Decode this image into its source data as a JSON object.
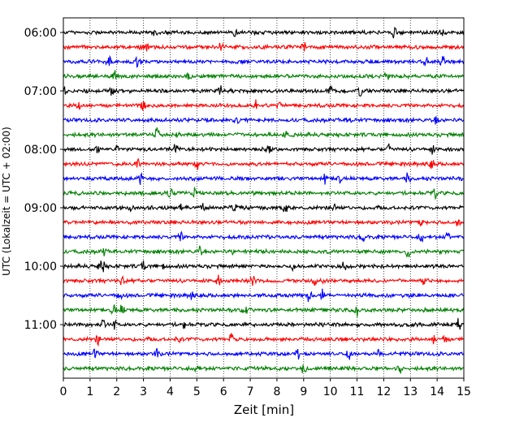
{
  "chart_data": {
    "type": "line",
    "title": "",
    "xlabel": "Zeit  [min]",
    "ylabel": "UTC (Lokalzeit = UTC + 02:00)",
    "xlim": [
      0,
      15
    ],
    "xticks": [
      0,
      1,
      2,
      3,
      4,
      5,
      6,
      7,
      8,
      9,
      10,
      11,
      12,
      13,
      14,
      15
    ],
    "grid_x": "dotted",
    "yticks": [
      {
        "label": "06:00",
        "row": 0
      },
      {
        "label": "07:00",
        "row": 4
      },
      {
        "label": "08:00",
        "row": 8
      },
      {
        "label": "09:00",
        "row": 12
      },
      {
        "label": "10:00",
        "row": 16
      },
      {
        "label": "11:00",
        "row": 20
      }
    ],
    "trace_colors": [
      "#000000",
      "#ff0000",
      "#0000ff",
      "#008000"
    ],
    "trace_count": 24,
    "trace_interval_minutes": 15,
    "events": [
      {
        "row": 0,
        "minutes": [
          3.4,
          6.4,
          12.4,
          14.2
        ]
      },
      {
        "row": 1,
        "minutes": [
          2.9,
          3.1,
          5.9,
          9.0
        ]
      },
      {
        "row": 2,
        "minutes": [
          1.7,
          2.8,
          13.6,
          14.2
        ]
      },
      {
        "row": 3,
        "minutes": [
          1.9,
          4.7,
          12.1
        ]
      },
      {
        "row": 4,
        "minutes": [
          0.1,
          1.8,
          5.9,
          10.0,
          11.1
        ]
      },
      {
        "row": 5,
        "minutes": [
          0.6,
          3.0,
          7.2,
          8.1
        ]
      },
      {
        "row": 6,
        "minutes": [
          6.5,
          10.7,
          14.0
        ]
      },
      {
        "row": 7,
        "minutes": [
          3.5,
          4.3,
          8.3
        ]
      },
      {
        "row": 8,
        "minutes": [
          1.3,
          2.0,
          4.2,
          7.7,
          12.2,
          13.8
        ]
      },
      {
        "row": 9,
        "minutes": [
          2.8,
          5.0,
          13.8
        ]
      },
      {
        "row": 10,
        "minutes": [
          2.9,
          9.8,
          10.3,
          12.9
        ]
      },
      {
        "row": 11,
        "minutes": [
          4.0,
          4.9,
          13.9
        ]
      },
      {
        "row": 12,
        "minutes": [
          2.5,
          4.4,
          5.2,
          6.4,
          8.3,
          10.1
        ]
      },
      {
        "row": 13,
        "minutes": [
          13.4,
          14.8
        ]
      },
      {
        "row": 14,
        "minutes": [
          4.4,
          11.2,
          13.4,
          14.4
        ]
      },
      {
        "row": 15,
        "minutes": [
          1.5,
          5.1,
          6.4,
          12.9
        ]
      },
      {
        "row": 16,
        "minutes": [
          1.4,
          1.5,
          3.0,
          3.7,
          8.6,
          10.5
        ]
      },
      {
        "row": 17,
        "minutes": [
          2.2,
          5.8,
          7.1,
          9.4,
          9.7,
          13.5
        ]
      },
      {
        "row": 18,
        "minutes": [
          2.1,
          4.8,
          9.2,
          9.7
        ]
      },
      {
        "row": 19,
        "minutes": [
          1.9,
          2.2,
          6.8,
          11.0
        ]
      },
      {
        "row": 20,
        "minutes": [
          0.9,
          1.5,
          1.9,
          4.5,
          14.8
        ]
      },
      {
        "row": 21,
        "minutes": [
          1.3,
          4.3,
          6.3,
          13.9,
          14.3
        ]
      },
      {
        "row": 22,
        "minutes": [
          1.2,
          3.5,
          8.8,
          10.7,
          11.8
        ]
      },
      {
        "row": 23,
        "minutes": [
          5.0,
          9.0,
          12.6
        ]
      }
    ]
  }
}
